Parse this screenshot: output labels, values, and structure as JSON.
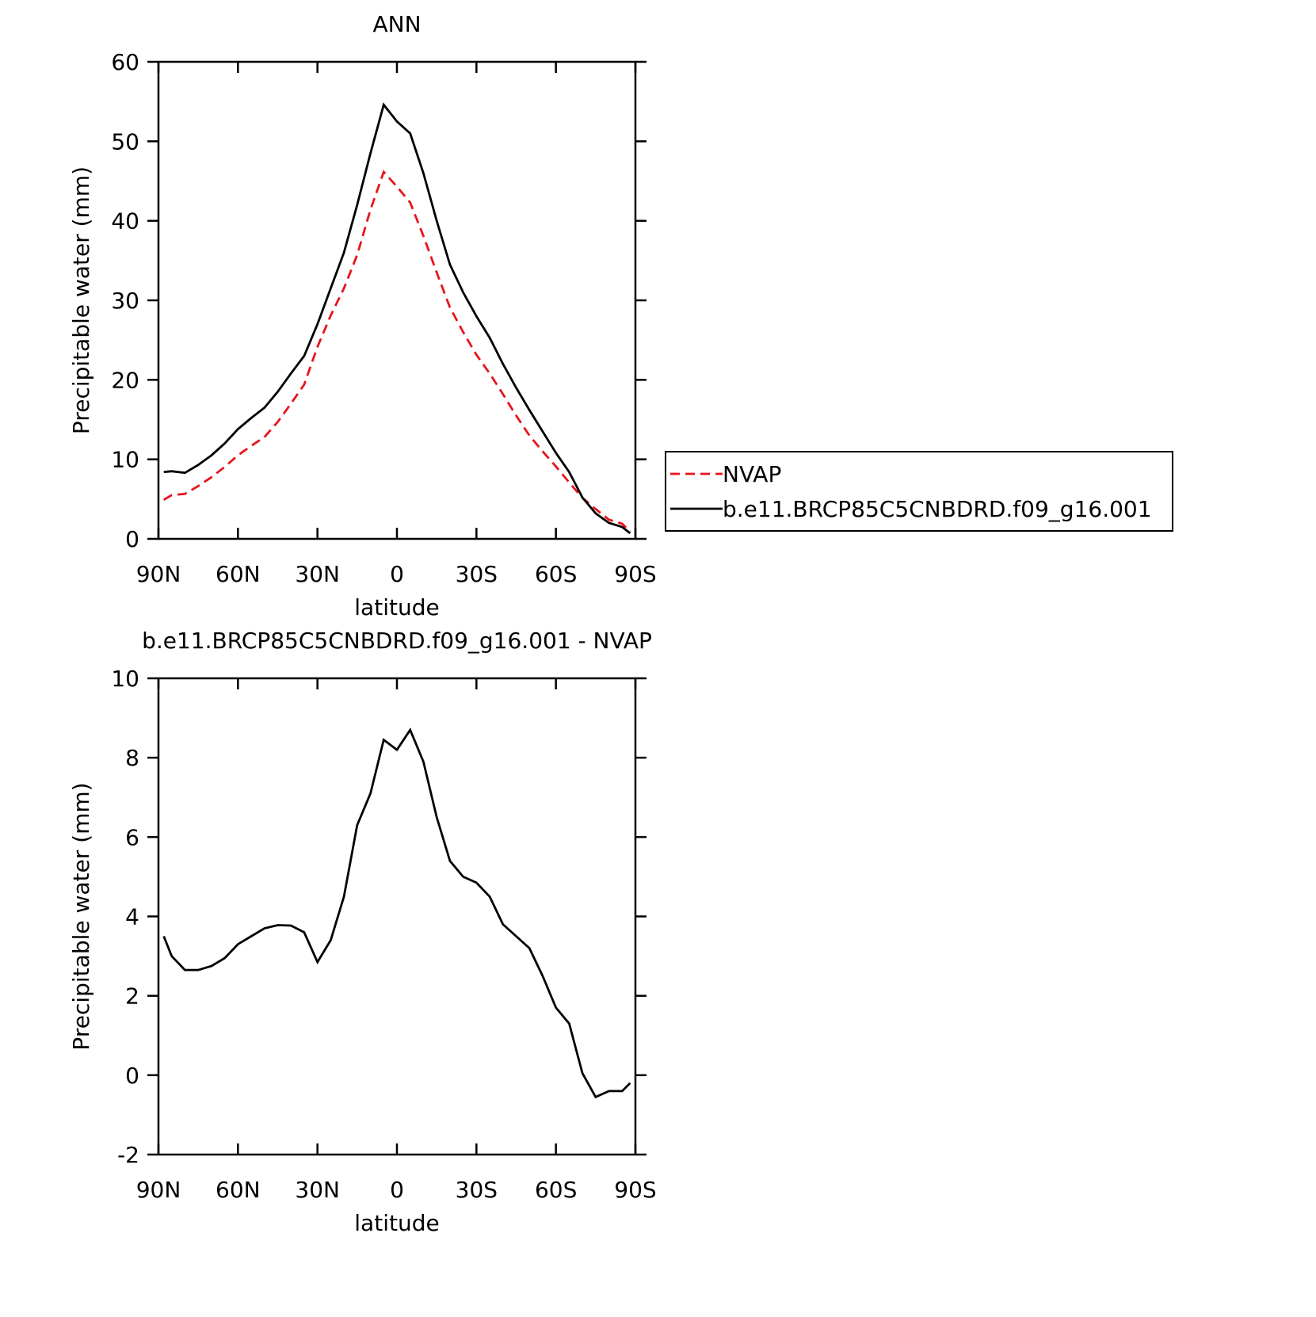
{
  "chart_data": [
    {
      "type": "line",
      "title": "ANN",
      "xlabel": "latitude",
      "ylabel": "Precipitable water (mm)",
      "x": [
        88,
        85,
        80,
        75,
        70,
        65,
        60,
        55,
        50,
        45,
        40,
        35,
        30,
        25,
        20,
        15,
        10,
        5,
        0,
        -5,
        -10,
        -15,
        -20,
        -25,
        -30,
        -35,
        -40,
        -45,
        -50,
        -55,
        -60,
        -65,
        -70,
        -75,
        -80,
        -85,
        -88
      ],
      "series": [
        {
          "name": "NVAP",
          "color": "#e8141c",
          "dashed": true,
          "values": [
            4.9,
            5.5,
            5.65,
            6.65,
            7.75,
            9.05,
            10.5,
            11.7,
            12.8,
            14.7,
            17.0,
            19.4,
            24.15,
            28.1,
            31.5,
            35.7,
            41.4,
            46.15,
            44.3,
            42.3,
            38.1,
            33.5,
            29.1,
            26.0,
            23.15,
            20.8,
            18.2,
            15.5,
            13.0,
            11.0,
            9.1,
            7.1,
            5.15,
            3.75,
            2.4,
            1.9,
            0.9
          ]
        },
        {
          "name": "b.e11.BRCP85C5CNBDRD.f09_g16.001",
          "color": "#000000",
          "dashed": false,
          "values": [
            8.4,
            8.5,
            8.3,
            9.3,
            10.5,
            12.0,
            13.8,
            15.2,
            16.5,
            18.5,
            20.8,
            23.0,
            27.0,
            31.5,
            36.0,
            42.0,
            48.5,
            54.6,
            52.5,
            51.0,
            46.0,
            40.0,
            34.5,
            31.0,
            28.0,
            25.3,
            22.0,
            19.0,
            16.2,
            13.5,
            10.8,
            8.4,
            5.2,
            3.2,
            2.0,
            1.5,
            0.7
          ]
        }
      ],
      "xlim": [
        90,
        -90
      ],
      "xticks": [
        {
          "value": 90,
          "label": "90N"
        },
        {
          "value": 60,
          "label": "60N"
        },
        {
          "value": 30,
          "label": "30N"
        },
        0,
        {
          "value": -30,
          "label": "30S"
        },
        {
          "value": -60,
          "label": "60S"
        },
        {
          "value": -90,
          "label": "90S"
        }
      ],
      "ylim": [
        0,
        60
      ],
      "yticks": [
        0,
        10,
        20,
        30,
        40,
        50,
        60
      ],
      "legend": "right"
    },
    {
      "type": "line",
      "title": "b.e11.BRCP85C5CNBDRD.f09_g16.001  -  NVAP",
      "xlabel": "latitude",
      "ylabel": "Precipitable water (mm)",
      "x": [
        88,
        85,
        80,
        75,
        70,
        65,
        60,
        55,
        50,
        45,
        40,
        35,
        30,
        25,
        20,
        15,
        10,
        5,
        0,
        -5,
        -10,
        -15,
        -20,
        -25,
        -30,
        -35,
        -40,
        -45,
        -50,
        -55,
        -60,
        -65,
        -70,
        -75,
        -80,
        -85,
        -88
      ],
      "series": [
        {
          "color": "#000000",
          "dashed": false,
          "values": [
            3.5,
            3.0,
            2.65,
            2.65,
            2.75,
            2.95,
            3.3,
            3.5,
            3.7,
            3.78,
            3.77,
            3.6,
            2.85,
            3.4,
            4.5,
            6.3,
            7.1,
            8.45,
            8.2,
            8.7,
            7.9,
            6.5,
            5.4,
            5.0,
            4.85,
            4.5,
            3.8,
            3.5,
            3.2,
            2.5,
            1.7,
            1.3,
            0.05,
            -0.55,
            -0.4,
            -0.4,
            -0.2
          ]
        }
      ],
      "xlim": [
        90,
        -90
      ],
      "xticks": [
        {
          "value": 90,
          "label": "90N"
        },
        {
          "value": 60,
          "label": "60N"
        },
        {
          "value": 30,
          "label": "30N"
        },
        0,
        {
          "value": -30,
          "label": "30S"
        },
        {
          "value": -60,
          "label": "60S"
        },
        {
          "value": -90,
          "label": "90S"
        }
      ],
      "ylim": [
        -2,
        10
      ],
      "yticks": [
        -2,
        0,
        2,
        4,
        6,
        8,
        10
      ]
    }
  ]
}
